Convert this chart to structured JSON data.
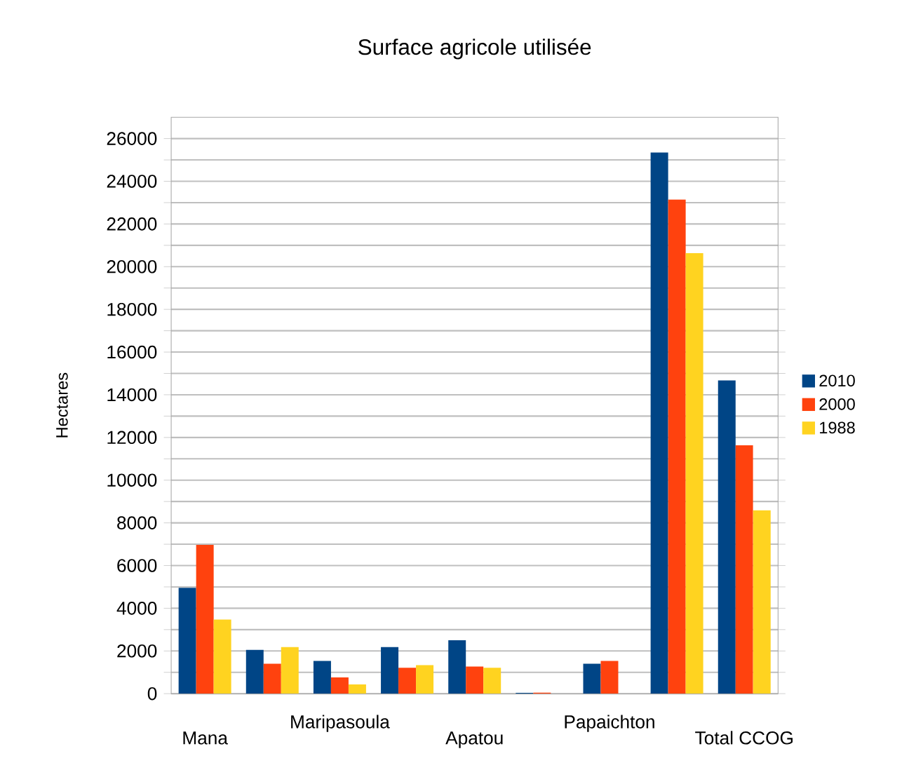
{
  "chart_data": {
    "type": "bar",
    "title": "Surface agricole utilisée",
    "ylabel": "Hectares",
    "categories": [
      "Mana",
      null,
      "Maripasoula",
      null,
      "Apatou",
      null,
      "Papaichton",
      null,
      "Total CCOG"
    ],
    "series": [
      {
        "name": "2010",
        "color": "#004586",
        "values": [
          4960,
          2050,
          1530,
          2180,
          2500,
          40,
          1400,
          25350,
          14670
        ]
      },
      {
        "name": "2000",
        "color": "#ff420e",
        "values": [
          6970,
          1400,
          760,
          1210,
          1270,
          50,
          1530,
          23150,
          11630
        ]
      },
      {
        "name": "1988",
        "color": "#ffd320",
        "values": [
          3470,
          2180,
          430,
          1340,
          1210,
          0,
          0,
          20630,
          8590
        ]
      }
    ],
    "ylim": [
      0,
      27000
    ],
    "yticks": [
      0,
      {
        "value": 1000,
        "label": null
      },
      2000,
      {
        "value": 3000,
        "label": null
      },
      4000,
      {
        "value": 5000,
        "label": null
      },
      6000,
      {
        "value": 7000,
        "label": null
      },
      8000,
      {
        "value": 9000,
        "label": null
      },
      10000,
      {
        "value": 11000,
        "label": null
      },
      12000,
      {
        "value": 13000,
        "label": null
      },
      14000,
      {
        "value": 15000,
        "label": null
      },
      16000,
      {
        "value": 17000,
        "label": null
      },
      18000,
      {
        "value": 19000,
        "label": null
      },
      20000,
      {
        "value": 21000,
        "label": null
      },
      22000,
      {
        "value": 23000,
        "label": null
      },
      24000,
      {
        "value": 25000,
        "label": null
      },
      26000
    ],
    "grid": "y",
    "legend": "right"
  }
}
